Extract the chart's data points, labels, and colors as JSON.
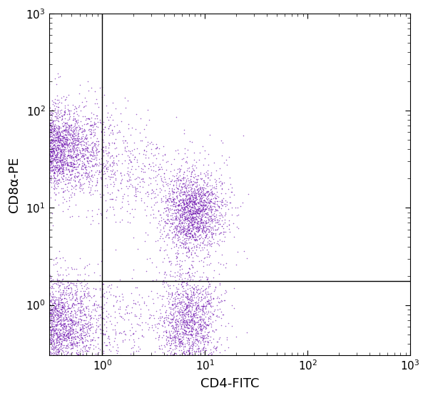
{
  "dot_color": "#6A0DAD",
  "dot_alpha": 0.65,
  "dot_size": 1.2,
  "xlabel": "CD4-FITC",
  "ylabel": "CD8α-PE",
  "xlim_log": [
    -0.52,
    3.0
  ],
  "ylim_log": [
    -0.52,
    3.0
  ],
  "gate_x": 1.0,
  "gate_y": 1.75,
  "background_color": "#ffffff",
  "clusters": [
    {
      "name": "upper_left",
      "x_center_log": -0.48,
      "y_center_log": 1.62,
      "x_spread": 0.22,
      "y_spread": 0.2,
      "n_points": 2800,
      "x_tail": 0.35,
      "y_tail": 0.3
    },
    {
      "name": "upper_right",
      "x_center_log": 0.88,
      "y_center_log": 0.95,
      "x_spread": 0.14,
      "y_spread": 0.2,
      "n_points": 1800,
      "x_tail": 0.18,
      "y_tail": 0.3
    },
    {
      "name": "lower_left",
      "x_center_log": -0.48,
      "y_center_log": -0.2,
      "x_spread": 0.22,
      "y_spread": 0.25,
      "n_points": 2600,
      "x_tail": 0.35,
      "y_tail": 0.3
    },
    {
      "name": "lower_right",
      "x_center_log": 0.85,
      "y_center_log": -0.2,
      "x_spread": 0.14,
      "y_spread": 0.28,
      "n_points": 1400,
      "x_tail": 0.18,
      "y_tail": 0.3
    }
  ],
  "scatter_bridge_ul_ur": {
    "x_center_log": 0.25,
    "y_center_log": 1.35,
    "x_spread": 0.3,
    "y_spread": 0.25,
    "n_points": 400
  },
  "scatter_bridge_ll_lr": {
    "x_center_log": 0.25,
    "y_center_log": -0.2,
    "x_spread": 0.3,
    "y_spread": 0.25,
    "n_points": 200
  }
}
